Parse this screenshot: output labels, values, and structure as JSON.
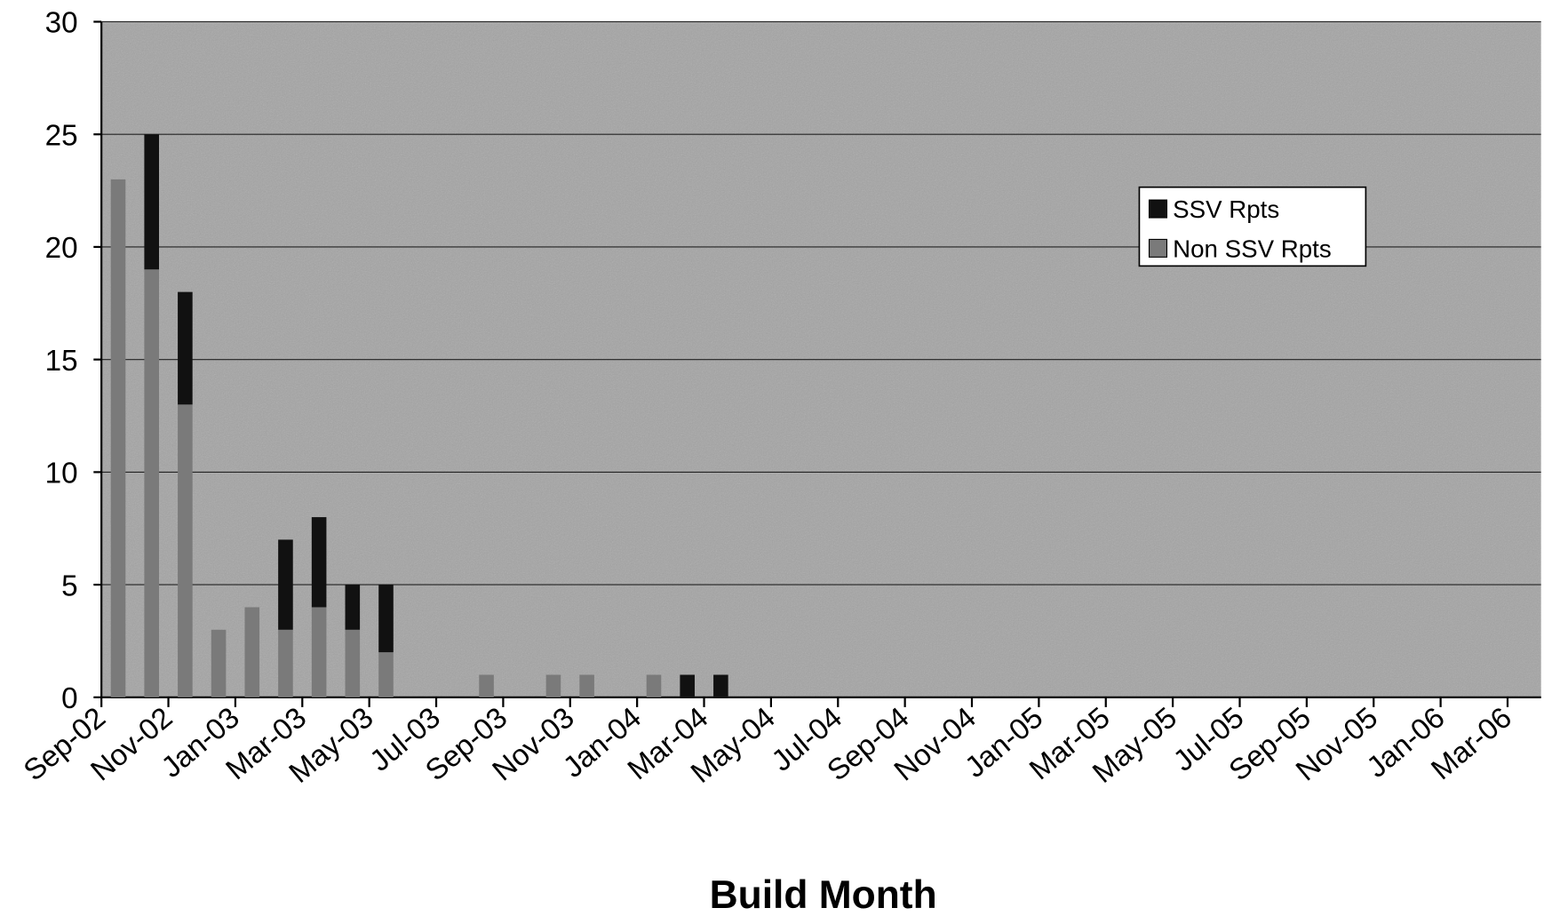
{
  "chart_data": {
    "type": "stacked_bar",
    "x_label": "Build Month",
    "categories": [
      "Sep-02",
      null,
      "Nov-02",
      null,
      "Jan-03",
      null,
      "Mar-03",
      null,
      "May-03",
      null,
      "Jul-03",
      null,
      "Sep-03",
      null,
      "Nov-03",
      null,
      "Jan-04",
      null,
      "Mar-04",
      null,
      "May-04",
      null,
      "Jul-04",
      null,
      "Sep-04",
      null,
      "Nov-04",
      null,
      "Jan-05",
      null,
      "Mar-05",
      null,
      "May-05",
      null,
      "Jul-05",
      null,
      "Sep-05",
      null,
      "Nov-05",
      null,
      "Jan-06",
      null,
      "Mar-06"
    ],
    "series": [
      {
        "name": "SSV Rpts",
        "color": "#111111",
        "values": [
          0,
          6,
          5,
          0,
          0,
          4,
          4,
          2,
          3,
          0,
          0,
          0,
          0,
          0,
          0,
          0,
          0,
          1,
          1,
          0,
          0,
          0,
          0,
          0,
          0,
          0,
          0,
          0,
          0,
          0,
          0,
          0,
          0,
          0,
          0,
          0,
          0,
          0,
          0,
          0,
          0,
          0,
          0
        ]
      },
      {
        "name": "Non SSV Rpts",
        "color": "#7a7a7a",
        "values": [
          23,
          19,
          13,
          3,
          4,
          3,
          4,
          3,
          2,
          0,
          0,
          1,
          0,
          1,
          1,
          0,
          1,
          0,
          0,
          0,
          0,
          0,
          0,
          0,
          0,
          0,
          0,
          0,
          0,
          0,
          0,
          0,
          0,
          0,
          0,
          0,
          0,
          0,
          0,
          0,
          0,
          0,
          0
        ]
      }
    ],
    "ylim": [
      0,
      30
    ],
    "yticks": [
      0,
      5,
      10,
      15,
      20,
      25,
      30
    ],
    "grid": true,
    "legend": "upper right"
  }
}
